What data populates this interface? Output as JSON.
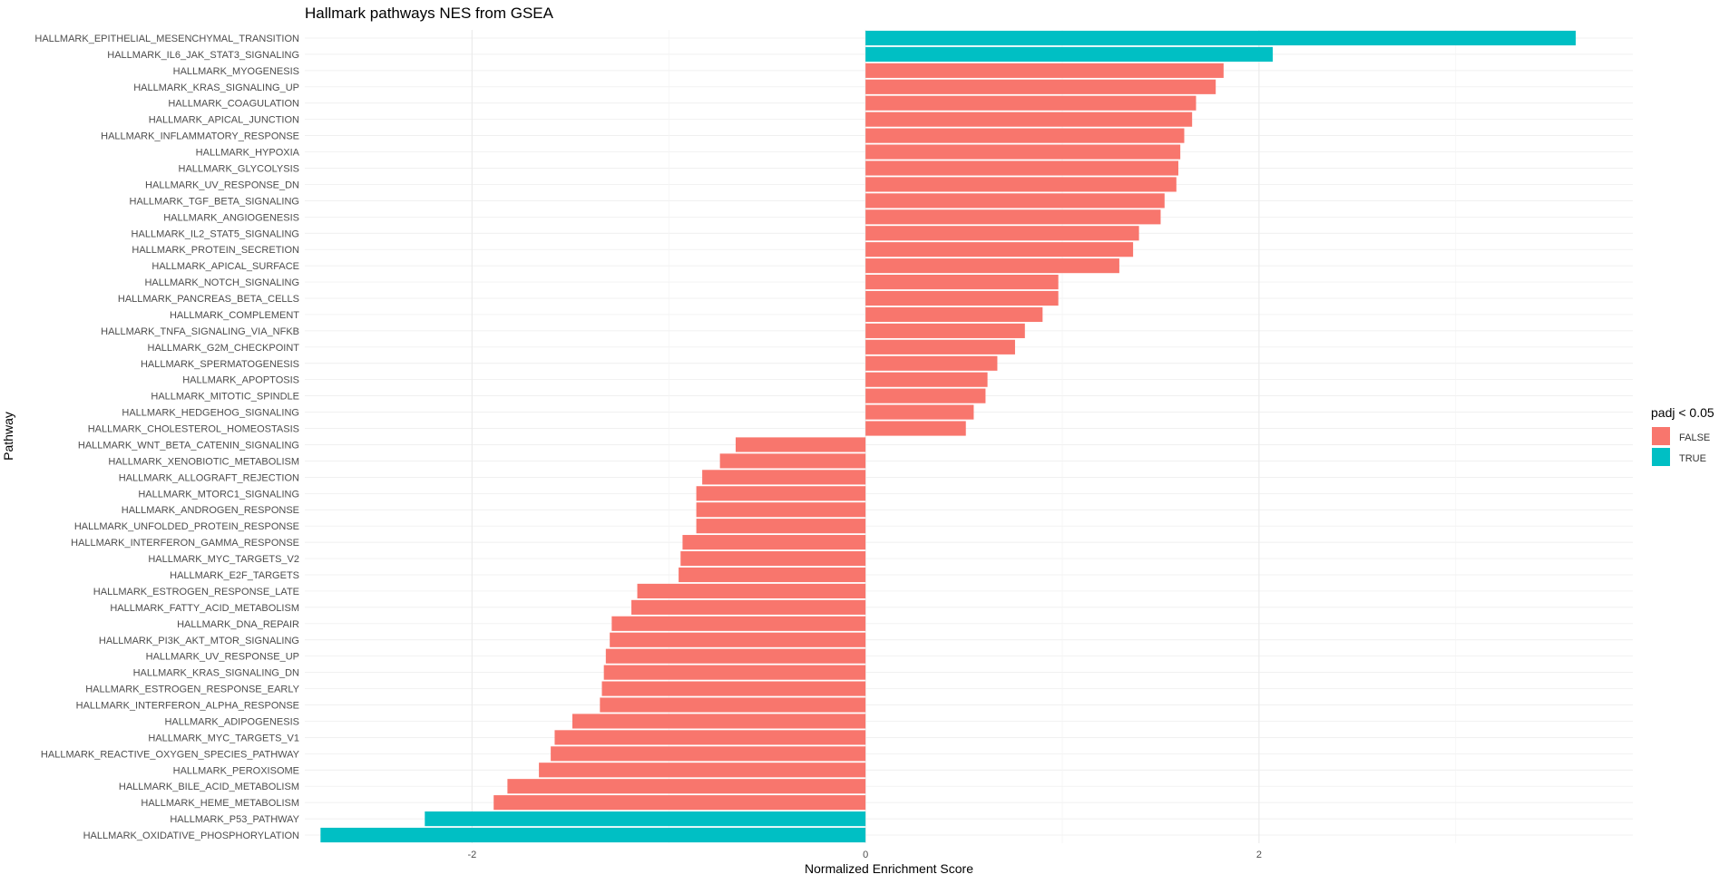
{
  "chart_data": {
    "type": "bar",
    "orientation": "horizontal",
    "title": "Hallmark pathways NES from GSEA",
    "xlabel": "Normalized Enrichment Score",
    "ylabel": "Pathway",
    "xlim": [
      -2.85,
      3.9
    ],
    "x_ticks": [
      -2,
      0,
      2
    ],
    "x_tick_labels": [
      "-2",
      "0",
      "2"
    ],
    "grid": true,
    "legend": {
      "title": "padj < 0.05",
      "position": "right",
      "entries": [
        {
          "label": "FALSE",
          "color": "#F8766D"
        },
        {
          "label": "TRUE",
          "color": "#00BFC4"
        }
      ]
    },
    "colors": {
      "FALSE": "#F8766D",
      "TRUE": "#00BFC4"
    },
    "bars": [
      {
        "pathway": "HALLMARK_EPITHELIAL_MESENCHYMAL_TRANSITION",
        "nes": 3.61,
        "padj_sig": true
      },
      {
        "pathway": "HALLMARK_IL6_JAK_STAT3_SIGNALING",
        "nes": 2.07,
        "padj_sig": true
      },
      {
        "pathway": "HALLMARK_MYOGENESIS",
        "nes": 1.82,
        "padj_sig": false
      },
      {
        "pathway": "HALLMARK_KRAS_SIGNALING_UP",
        "nes": 1.78,
        "padj_sig": false
      },
      {
        "pathway": "HALLMARK_COAGULATION",
        "nes": 1.68,
        "padj_sig": false
      },
      {
        "pathway": "HALLMARK_APICAL_JUNCTION",
        "nes": 1.66,
        "padj_sig": false
      },
      {
        "pathway": "HALLMARK_INFLAMMATORY_RESPONSE",
        "nes": 1.62,
        "padj_sig": false
      },
      {
        "pathway": "HALLMARK_HYPOXIA",
        "nes": 1.6,
        "padj_sig": false
      },
      {
        "pathway": "HALLMARK_GLYCOLYSIS",
        "nes": 1.59,
        "padj_sig": false
      },
      {
        "pathway": "HALLMARK_UV_RESPONSE_DN",
        "nes": 1.58,
        "padj_sig": false
      },
      {
        "pathway": "HALLMARK_TGF_BETA_SIGNALING",
        "nes": 1.52,
        "padj_sig": false
      },
      {
        "pathway": "HALLMARK_ANGIOGENESIS",
        "nes": 1.5,
        "padj_sig": false
      },
      {
        "pathway": "HALLMARK_IL2_STAT5_SIGNALING",
        "nes": 1.39,
        "padj_sig": false
      },
      {
        "pathway": "HALLMARK_PROTEIN_SECRETION",
        "nes": 1.36,
        "padj_sig": false
      },
      {
        "pathway": "HALLMARK_APICAL_SURFACE",
        "nes": 1.29,
        "padj_sig": false
      },
      {
        "pathway": "HALLMARK_NOTCH_SIGNALING",
        "nes": 0.98,
        "padj_sig": false
      },
      {
        "pathway": "HALLMARK_PANCREAS_BETA_CELLS",
        "nes": 0.98,
        "padj_sig": false
      },
      {
        "pathway": "HALLMARK_COMPLEMENT",
        "nes": 0.9,
        "padj_sig": false
      },
      {
        "pathway": "HALLMARK_TNFA_SIGNALING_VIA_NFKB",
        "nes": 0.81,
        "padj_sig": false
      },
      {
        "pathway": "HALLMARK_G2M_CHECKPOINT",
        "nes": 0.76,
        "padj_sig": false
      },
      {
        "pathway": "HALLMARK_SPERMATOGENESIS",
        "nes": 0.67,
        "padj_sig": false
      },
      {
        "pathway": "HALLMARK_APOPTOSIS",
        "nes": 0.62,
        "padj_sig": false
      },
      {
        "pathway": "HALLMARK_MITOTIC_SPINDLE",
        "nes": 0.61,
        "padj_sig": false
      },
      {
        "pathway": "HALLMARK_HEDGEHOG_SIGNALING",
        "nes": 0.55,
        "padj_sig": false
      },
      {
        "pathway": "HALLMARK_CHOLESTEROL_HOMEOSTASIS",
        "nes": 0.51,
        "padj_sig": false
      },
      {
        "pathway": "HALLMARK_WNT_BETA_CATENIN_SIGNALING",
        "nes": -0.66,
        "padj_sig": false
      },
      {
        "pathway": "HALLMARK_XENOBIOTIC_METABOLISM",
        "nes": -0.74,
        "padj_sig": false
      },
      {
        "pathway": "HALLMARK_ALLOGRAFT_REJECTION",
        "nes": -0.83,
        "padj_sig": false
      },
      {
        "pathway": "HALLMARK_MTORC1_SIGNALING",
        "nes": -0.86,
        "padj_sig": false
      },
      {
        "pathway": "HALLMARK_ANDROGEN_RESPONSE",
        "nes": -0.86,
        "padj_sig": false
      },
      {
        "pathway": "HALLMARK_UNFOLDED_PROTEIN_RESPONSE",
        "nes": -0.86,
        "padj_sig": false
      },
      {
        "pathway": "HALLMARK_INTERFERON_GAMMA_RESPONSE",
        "nes": -0.93,
        "padj_sig": false
      },
      {
        "pathway": "HALLMARK_MYC_TARGETS_V2",
        "nes": -0.94,
        "padj_sig": false
      },
      {
        "pathway": "HALLMARK_E2F_TARGETS",
        "nes": -0.95,
        "padj_sig": false
      },
      {
        "pathway": "HALLMARK_ESTROGEN_RESPONSE_LATE",
        "nes": -1.16,
        "padj_sig": false
      },
      {
        "pathway": "HALLMARK_FATTY_ACID_METABOLISM",
        "nes": -1.19,
        "padj_sig": false
      },
      {
        "pathway": "HALLMARK_DNA_REPAIR",
        "nes": -1.29,
        "padj_sig": false
      },
      {
        "pathway": "HALLMARK_PI3K_AKT_MTOR_SIGNALING",
        "nes": -1.3,
        "padj_sig": false
      },
      {
        "pathway": "HALLMARK_UV_RESPONSE_UP",
        "nes": -1.32,
        "padj_sig": false
      },
      {
        "pathway": "HALLMARK_KRAS_SIGNALING_DN",
        "nes": -1.33,
        "padj_sig": false
      },
      {
        "pathway": "HALLMARK_ESTROGEN_RESPONSE_EARLY",
        "nes": -1.34,
        "padj_sig": false
      },
      {
        "pathway": "HALLMARK_INTERFERON_ALPHA_RESPONSE",
        "nes": -1.35,
        "padj_sig": false
      },
      {
        "pathway": "HALLMARK_ADIPOGENESIS",
        "nes": -1.49,
        "padj_sig": false
      },
      {
        "pathway": "HALLMARK_MYC_TARGETS_V1",
        "nes": -1.58,
        "padj_sig": false
      },
      {
        "pathway": "HALLMARK_REACTIVE_OXYGEN_SPECIES_PATHWAY",
        "nes": -1.6,
        "padj_sig": false
      },
      {
        "pathway": "HALLMARK_PEROXISOME",
        "nes": -1.66,
        "padj_sig": false
      },
      {
        "pathway": "HALLMARK_BILE_ACID_METABOLISM",
        "nes": -1.82,
        "padj_sig": false
      },
      {
        "pathway": "HALLMARK_HEME_METABOLISM",
        "nes": -1.89,
        "padj_sig": false
      },
      {
        "pathway": "HALLMARK_P53_PATHWAY",
        "nes": -2.24,
        "padj_sig": true
      },
      {
        "pathway": "HALLMARK_OXIDATIVE_PHOSPHORYLATION",
        "nes": -2.77,
        "padj_sig": true
      }
    ]
  }
}
